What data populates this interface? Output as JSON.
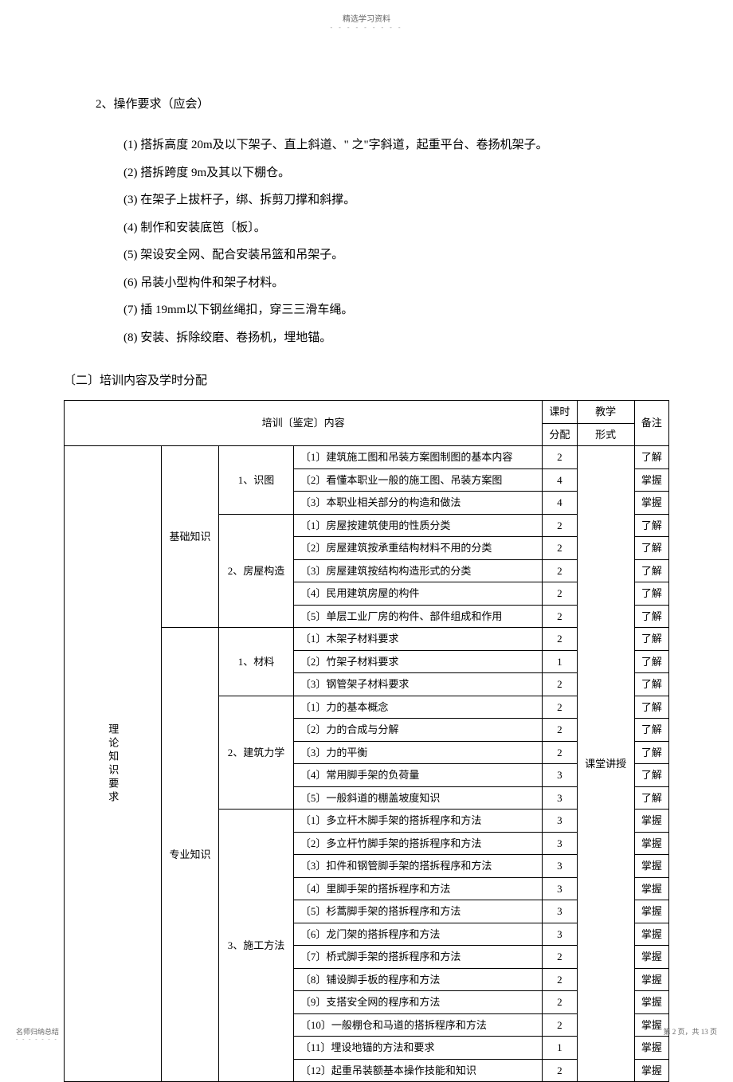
{
  "header": {
    "note": "精选学习资料",
    "dots": "- - - - - - - - -"
  },
  "section2": {
    "title": "2、操作要求（应会）",
    "items": [
      "(1) 搭拆高度 20m及以下架子、直上斜道、\" 之\"字斜道，起重平台、卷扬机架子。",
      "(2) 搭拆跨度 9m及其以下棚仓。",
      "(3) 在架子上拔杆子，绑、拆剪刀撑和斜撑。",
      "(4) 制作和安装底笆〔板〕。",
      "(5) 架设安全网、配合安装吊篮和吊架子。",
      "(6) 吊装小型构件和架子材料。",
      "(7) 插 19mm以下钢丝绳扣，穿三三滑车绳。",
      "(8) 安装、拆除绞磨、卷扬机，埋地锚。"
    ]
  },
  "subsection": {
    "title": "〔二〕培训内容及学时分配"
  },
  "table": {
    "header": {
      "content": "培训〔鉴定〕内容",
      "hours": "课时分配",
      "method": "教学形式",
      "note": "备注"
    },
    "col1": "理论知识要求",
    "teaching_method": "课堂讲授",
    "groups": [
      {
        "category": "基础知识",
        "subgroups": [
          {
            "name": "1、识图",
            "rows": [
              {
                "content": "〔1〕建筑施工图和吊装方案图制图的基本内容",
                "hours": "2",
                "note": "了解"
              },
              {
                "content": "〔2〕看懂本职业一般的施工图、吊装方案图",
                "hours": "4",
                "note": "掌握"
              },
              {
                "content": "〔3〕本职业相关部分的构造和做法",
                "hours": "4",
                "note": "掌握"
              }
            ]
          },
          {
            "name": "2、房屋构造",
            "rows": [
              {
                "content": "〔1〕房屋按建筑使用的性质分类",
                "hours": "2",
                "note": "了解"
              },
              {
                "content": "〔2〕房屋建筑按承重结构材料不用的分类",
                "hours": "2",
                "note": "了解"
              },
              {
                "content": "〔3〕房屋建筑按结构构造形式的分类",
                "hours": "2",
                "note": "了解"
              },
              {
                "content": "〔4〕民用建筑房屋的构件",
                "hours": "2",
                "note": "了解"
              },
              {
                "content": "〔5〕单层工业厂房的构件、部件组成和作用",
                "hours": "2",
                "note": "了解"
              }
            ]
          }
        ]
      },
      {
        "category": "专业知识",
        "subgroups": [
          {
            "name": "1、材料",
            "rows": [
              {
                "content": "〔1〕木架子材料要求",
                "hours": "2",
                "note": "了解"
              },
              {
                "content": "〔2〕竹架子材料要求",
                "hours": "1",
                "note": "了解"
              },
              {
                "content": "〔3〕钢管架子材料要求",
                "hours": "2",
                "note": "了解"
              }
            ]
          },
          {
            "name": "2、建筑力学",
            "rows": [
              {
                "content": "〔1〕力的基本概念",
                "hours": "2",
                "note": "了解"
              },
              {
                "content": "〔2〕力的合成与分解",
                "hours": "2",
                "note": "了解"
              },
              {
                "content": "〔3〕力的平衡",
                "hours": "2",
                "note": "了解"
              },
              {
                "content": "〔4〕常用脚手架的负荷量",
                "hours": "3",
                "note": "了解"
              },
              {
                "content": "〔5〕一般斜道的棚盖坡度知识",
                "hours": "3",
                "note": "了解"
              }
            ]
          },
          {
            "name": "3、施工方法",
            "rows": [
              {
                "content": "〔1〕多立杆木脚手架的搭拆程序和方法",
                "hours": "3",
                "note": "掌握"
              },
              {
                "content": "〔2〕多立杆竹脚手架的搭拆程序和方法",
                "hours": "3",
                "note": "掌握"
              },
              {
                "content": "〔3〕扣件和钢管脚手架的搭拆程序和方法",
                "hours": "3",
                "note": "掌握"
              },
              {
                "content": "〔4〕里脚手架的搭拆程序和方法",
                "hours": "3",
                "note": "掌握"
              },
              {
                "content": "〔5〕杉蒿脚手架的搭拆程序和方法",
                "hours": "3",
                "note": "掌握"
              },
              {
                "content": "〔6〕龙门架的搭拆程序和方法",
                "hours": "3",
                "note": "掌握"
              },
              {
                "content": "〔7〕桥式脚手架的搭拆程序和方法",
                "hours": "2",
                "note": "掌握"
              },
              {
                "content": "〔8〕铺设脚手板的程序和方法",
                "hours": "2",
                "note": "掌握"
              },
              {
                "content": "〔9〕支搭安全网的程序和方法",
                "hours": "2",
                "note": "掌握"
              },
              {
                "content": "〔10〕一般棚仓和马道的搭拆程序和方法",
                "hours": "2",
                "note": "掌握"
              },
              {
                "content": "〔11〕埋设地锚的方法和要求",
                "hours": "1",
                "note": "掌握"
              },
              {
                "content": "〔12〕起重吊装额基本操作技能和知识",
                "hours": "2",
                "note": "掌握"
              }
            ]
          }
        ]
      }
    ]
  },
  "footer": {
    "left": "名师归纳总结",
    "dots": "- - - - - - -",
    "right": "第 2 页，共 13 页"
  }
}
